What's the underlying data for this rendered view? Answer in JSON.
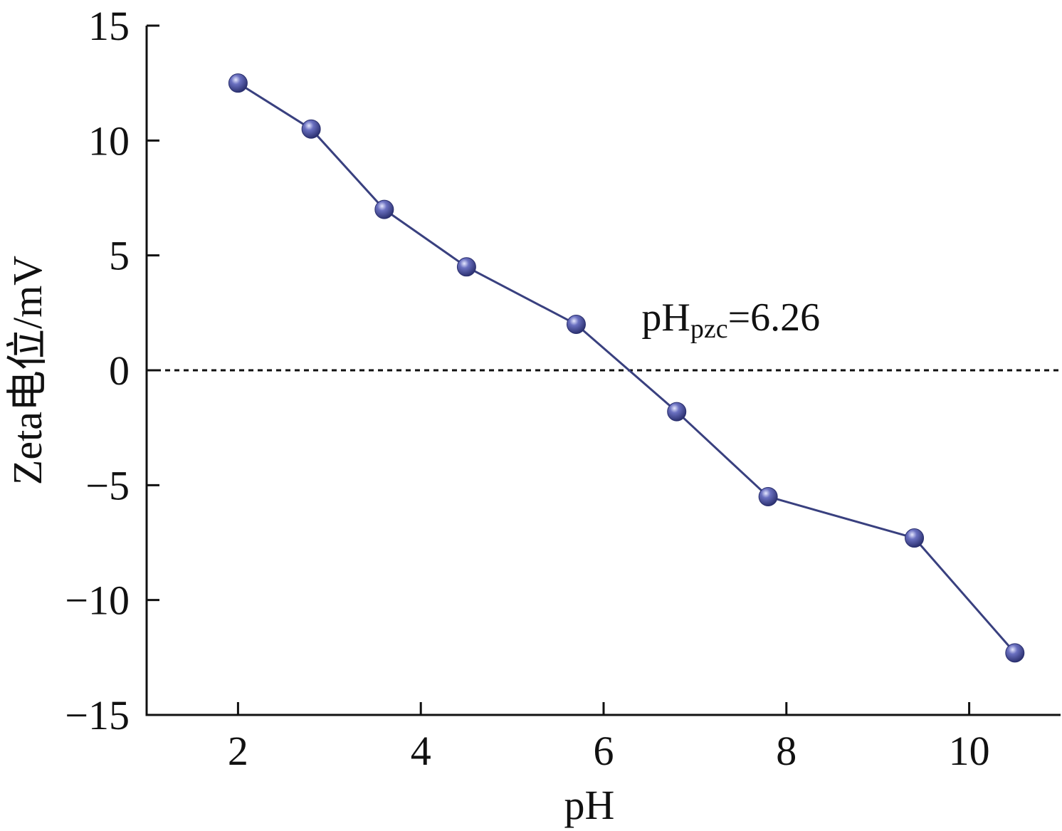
{
  "chart_data": {
    "type": "line",
    "title": "",
    "xlabel": "pH",
    "ylabel": "Zeta电位/mV",
    "xlim": [
      1.0,
      11.0
    ],
    "ylim": [
      -15,
      15
    ],
    "x_ticks": [
      2,
      4,
      6,
      8,
      10
    ],
    "y_ticks": [
      15,
      10,
      5,
      0,
      -5,
      -10,
      -15
    ],
    "x_tick_labels": [
      "2",
      "4",
      "6",
      "8",
      "10"
    ],
    "y_tick_labels": [
      "15",
      "10",
      "5",
      "0",
      "−5",
      "−10",
      "−15"
    ],
    "grid": false,
    "legend": "none",
    "series": [
      {
        "x": [
          2.0,
          2.8,
          3.6,
          4.5,
          5.7,
          6.8,
          7.8,
          9.4,
          10.5
        ],
        "y": [
          12.5,
          10.5,
          7.0,
          4.5,
          2.0,
          -1.8,
          -5.5,
          -7.3,
          -12.3
        ],
        "color": "#39407f"
      }
    ],
    "reference_line": {
      "y": 0,
      "style": "dotted",
      "color": "#111111"
    },
    "annotation": {
      "base": "pH",
      "sub": "pzc",
      "tail": "=6.26",
      "x": 6.26
    }
  }
}
